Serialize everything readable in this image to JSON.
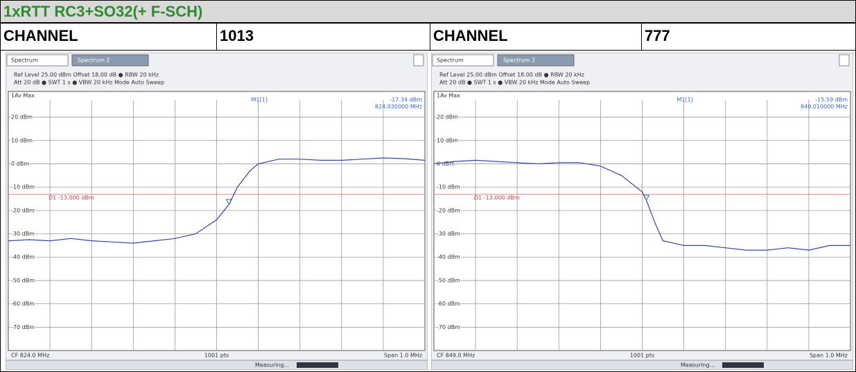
{
  "header": {
    "title": "1xRTT RC3+SO32(+ F-SCH)"
  },
  "row": [
    "CHANNEL",
    "1013",
    "CHANNEL",
    "777"
  ],
  "panels": [
    {
      "tabs": [
        "Spectrum",
        "Spectrum 2"
      ],
      "settings_line1": "Ref Level 25.00 dBm  Offset 18.00 dB ● RBW 20 kHz",
      "settings_line2": "Att 20 dB ● SWT 1 s ● VBW 20 kHz   Mode Auto Sweep",
      "chart": {
        "type": "line",
        "trace_label": "1Av Max",
        "color": "#3344aa",
        "x": [
          823.5,
          823.55,
          823.6,
          823.65,
          823.7,
          823.75,
          823.8,
          823.85,
          823.9,
          823.95,
          824.0,
          824.03,
          824.05,
          824.08,
          824.1,
          824.15,
          824.2,
          824.25,
          824.3,
          824.35,
          824.4,
          824.45,
          824.5
        ],
        "values": [
          -33,
          -32.5,
          -33,
          -32,
          -33,
          -33.5,
          -34,
          -33,
          -32,
          -30,
          -24,
          -17.34,
          -10,
          -3,
          0,
          2,
          2,
          1.5,
          1.5,
          2,
          2.5,
          2.2,
          1.5
        ],
        "xlim": [
          823.5,
          824.5
        ],
        "ylim": [
          -80,
          31
        ],
        "yticks": [
          {
            "value": 20,
            "label": "20 dBm"
          },
          {
            "value": 10,
            "label": "10 dBm"
          },
          {
            "value": 0,
            "label": "0 dBm"
          },
          {
            "value": -10,
            "label": "-10 dBm"
          },
          {
            "value": -20,
            "label": "-20 dBm"
          },
          {
            "value": -30,
            "label": "-30 dBm"
          },
          {
            "value": -40,
            "label": "-40 dBm"
          },
          {
            "value": -50,
            "label": "-50 dBm"
          },
          {
            "value": -60,
            "label": "-60 dBm"
          },
          {
            "value": -70,
            "label": "-70 dBm"
          }
        ],
        "display_line": {
          "value": -13,
          "label": "D1 -13.000 dBm"
        },
        "marker": {
          "name": "M1[1]",
          "x": 824.03,
          "y": -17.34,
          "y_label": "-17.34 dBm",
          "x_label": "824.030000 MHz"
        }
      },
      "footer": [
        "CF 824.0 MHz",
        "1001 pts",
        "Span 1.0 MHz"
      ],
      "status": "Measuring..."
    },
    {
      "tabs": [
        "Spectrum",
        "Spectrum 2"
      ],
      "settings_line1": "Ref Level 25.00 dBm  Offset 18.00 dB ● RBW 20 kHz",
      "settings_line2": "Att 20 dB ● SWT 1 s ● VBW 20 kHz   Mode Auto Sweep",
      "chart": {
        "type": "line",
        "trace_label": "1Av Max",
        "color": "#3344aa",
        "x": [
          848.5,
          848.55,
          848.6,
          848.65,
          848.7,
          848.75,
          848.8,
          848.85,
          848.9,
          848.95,
          849.0,
          849.01,
          849.03,
          849.05,
          849.1,
          849.15,
          849.2,
          849.25,
          849.3,
          849.35,
          849.4,
          849.45,
          849.5
        ],
        "values": [
          0,
          1,
          1.5,
          1,
          0.5,
          0,
          0.5,
          0.5,
          -1,
          -5,
          -12,
          -15.59,
          -25,
          -33,
          -35,
          -35,
          -36,
          -37,
          -37,
          -36,
          -37,
          -35,
          -35
        ],
        "xlim": [
          848.5,
          849.5
        ],
        "ylim": [
          -80,
          31
        ],
        "yticks": [
          {
            "value": 20,
            "label": "20 dBm"
          },
          {
            "value": 10,
            "label": "10 dBm"
          },
          {
            "value": 0,
            "label": "0 dBm"
          },
          {
            "value": -10,
            "label": "-10 dBm"
          },
          {
            "value": -20,
            "label": "-20 dBm"
          },
          {
            "value": -30,
            "label": "-30 dBm"
          },
          {
            "value": -40,
            "label": "-40 dBm"
          },
          {
            "value": -50,
            "label": "-50 dBm"
          },
          {
            "value": -60,
            "label": "-60 dBm"
          },
          {
            "value": -70,
            "label": "-70 dBm"
          }
        ],
        "display_line": {
          "value": -13,
          "label": "D1 -13.000 dBm"
        },
        "marker": {
          "name": "M1[1]",
          "x": 849.01,
          "y": -15.59,
          "y_label": "-15.59 dBm",
          "x_label": "849.010000 MHz"
        }
      },
      "footer": [
        "CF 849.0 MHz",
        "1001 pts",
        "Span 1.0 MHz"
      ],
      "status": "Measuring..."
    }
  ]
}
